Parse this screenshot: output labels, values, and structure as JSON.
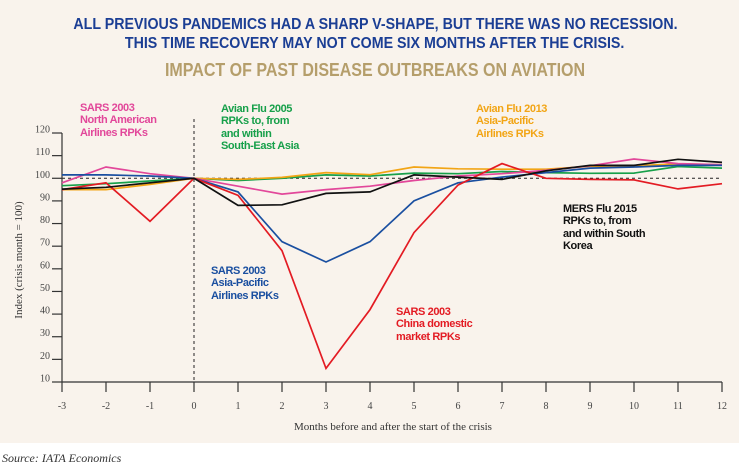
{
  "header": {
    "headline_line1": "ALL PREVIOUS PANDEMICS HAD A SHARP V-SHAPE, BUT THERE WAS NO RECESSION.",
    "headline_line2": "THIS TIME RECOVERY MAY NOT COME SIX MONTHS AFTER THE CRISIS."
  },
  "colors": {
    "headline": "#1b3e94",
    "chart_title": "#b59e6b",
    "panel_background": "#f9f3ec",
    "axis": "#333333"
  },
  "chart_data": {
    "type": "line",
    "title": "IMPACT OF PAST DISEASE OUTBREAKS ON AVIATION",
    "xlabel": "Months before and after the start of the crisis",
    "ylabel": "Index (crisis month = 100)",
    "x": [
      -3,
      -2,
      -1,
      0,
      1,
      2,
      3,
      4,
      5,
      6,
      7,
      8,
      9,
      10,
      11,
      12
    ],
    "xtick_labels": [
      "-3",
      "-2",
      "-1",
      "0",
      "1",
      "2",
      "3",
      "4",
      "5",
      "6",
      "7",
      "8",
      "9",
      "10",
      "11",
      "12"
    ],
    "yticks": [
      10,
      20,
      30,
      40,
      50,
      60,
      70,
      80,
      90,
      100,
      110,
      120
    ],
    "xlim": [
      -3,
      12
    ],
    "ylim": [
      10,
      120
    ],
    "grid": false,
    "legend": "none (inline text annotations)",
    "reference_lines": {
      "horizontal_y": 100,
      "vertical_x": 0,
      "style": "dashed"
    },
    "series": [
      {
        "id": "green",
        "name": "Avian Flu 2005 RPKs to, from and within South-East Asia",
        "label_lines": [
          "Avian Flu 2005",
          "RPKs to, from",
          "and within",
          "South-East Asia"
        ],
        "color": "#17a04a",
        "values": [
          96.7,
          97.6,
          98.8,
          100,
          99,
          100,
          101.5,
          101,
          102.3,
          102,
          103,
          102.5,
          102.2,
          102.3,
          105.2,
          104.5
        ]
      },
      {
        "id": "orange",
        "name": "Avian Flu 2013 Asia-Pacific Airlines RPKs",
        "label_lines": [
          "Avian Flu 2013",
          "Asia-Pacific",
          "Airlines RPKs"
        ],
        "color": "#f2a516",
        "values": [
          95,
          95,
          97.3,
          100,
          99.5,
          100.4,
          102.5,
          101.6,
          105,
          104.2,
          104,
          104,
          105.3,
          105.5,
          106.4,
          106
        ]
      },
      {
        "id": "pink",
        "name": "SARS 2003 North American Airlines RPKs",
        "label_lines": [
          "SARS 2003",
          "North American",
          "Airlines RPKs"
        ],
        "color": "#e2479a",
        "values": [
          98,
          105,
          102,
          100,
          96.5,
          93,
          95,
          96.5,
          99,
          101,
          102,
          103.5,
          105.5,
          108.5,
          106.5,
          106
        ]
      },
      {
        "id": "blue",
        "name": "SARS 2003 Asia-Pacific Airlines RPKs",
        "label_lines": [
          "SARS 2003",
          "Asia-Pacific",
          "Airlines RPKs"
        ],
        "color": "#1a4fa0",
        "values": [
          101.5,
          101.5,
          101,
          100,
          94,
          72,
          63,
          72,
          90,
          98,
          100.5,
          102.5,
          104.5,
          105,
          105.7,
          105.7
        ]
      },
      {
        "id": "red",
        "name": "SARS 2003 China domestic market RPKs",
        "label_lines": [
          "SARS 2003",
          "China domestic",
          "market RPKs"
        ],
        "color": "#e31b23",
        "values": [
          95,
          98,
          81,
          100,
          92.5,
          68,
          16,
          42,
          76,
          97,
          106.5,
          100,
          99.5,
          99.3,
          95.3,
          97.6
        ]
      },
      {
        "id": "black",
        "name": "MERS Flu 2015 RPKs to, from and within South Korea",
        "label_lines": [
          "MERS Flu 2015",
          "RPKs to, from",
          "and within South",
          "Korea"
        ],
        "color": "#111111",
        "values": [
          95.2,
          96,
          98,
          100,
          88,
          88.3,
          93.3,
          94,
          101.5,
          100.5,
          99.5,
          103.3,
          105.7,
          105.7,
          108.4,
          107
        ]
      }
    ]
  },
  "source": "Source: IATA Economics"
}
